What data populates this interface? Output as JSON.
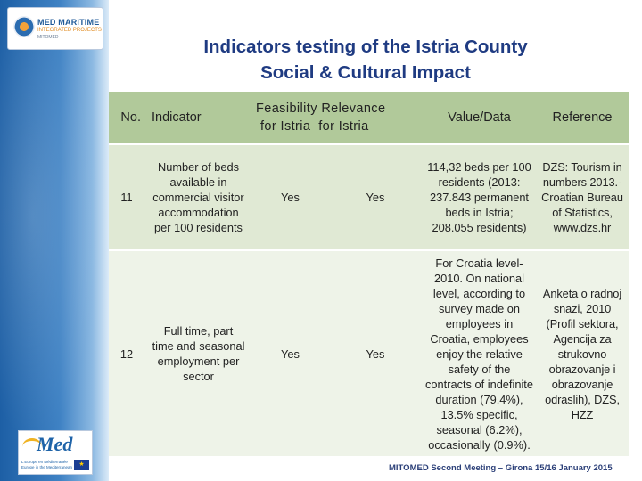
{
  "logo_top": {
    "line1": "MED MARITIME",
    "line2": "INTEGRATED PROJECTS",
    "line3": "MITOMED"
  },
  "logo_bottom": {
    "name": "Med",
    "caption": "L'Europe en Méditerranée Europe in the Mediterranean"
  },
  "title": {
    "line1": "Indicators testing of the Istria County",
    "line2": "Social & Cultural Impact"
  },
  "table": {
    "headers": {
      "no": "No.",
      "indicator": "Indicator",
      "feasibility_l1": "Feasibility",
      "feasibility_l2": "for Istria",
      "relevance_l1": "Relevance",
      "relevance_l2": "for Istria",
      "value": "Value/Data",
      "reference": "Reference"
    },
    "rows": [
      {
        "no": "11",
        "indicator": [
          "Number of beds",
          "available in",
          "commercial visitor",
          "accommodation",
          "per 100 residents"
        ],
        "feasibility": "Yes",
        "relevance": "Yes",
        "value": [
          "114,32 beds per 100",
          "residents (2013:",
          "237.843 permanent",
          "beds in Istria;",
          "208.055 residents)"
        ],
        "reference": [
          "DZS: Tourism in",
          "numbers 2013.-",
          "Croatian Bureau",
          "of Statistics,",
          "www.dzs.hr"
        ]
      },
      {
        "no": "12",
        "indicator": [
          "Full time, part",
          "time and seasonal",
          "employment per",
          "sector"
        ],
        "feasibility": "Yes",
        "relevance": "Yes",
        "value": [
          "For Croatia level-",
          "2010. On national",
          "level, according to",
          "survey made on",
          "employees in",
          "Croatia, employees",
          "enjoy the relative",
          "safety of the",
          "contracts of indefinite",
          "duration (79.4%),",
          "13.5% specific,",
          "seasonal (6.2%),",
          "occasionally (0.9%)."
        ],
        "reference": [
          "Anketa o radnoj",
          "snazi, 2010",
          "(Profil sektora,",
          "Agencija za",
          "strukovno",
          "obrazovanje i",
          "obrazovanje",
          "odraslih), DZS,",
          "HZZ"
        ]
      }
    ]
  },
  "footer": "MITOMED Second Meeting – Girona 15/16 January 2015"
}
